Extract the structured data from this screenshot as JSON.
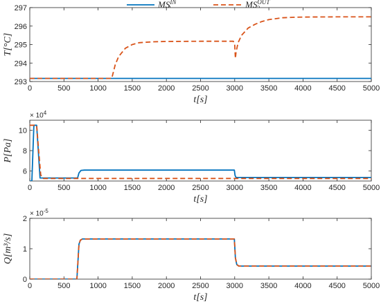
{
  "legend": {
    "entries": [
      {
        "base": "MS",
        "sub": "2",
        "sup": "IN",
        "color": "#0072BD",
        "dash": "solid"
      },
      {
        "base": "MS",
        "sub": "2",
        "sup": "OUT",
        "color": "#D95319",
        "dash": "dashed"
      }
    ]
  },
  "chart_data": [
    {
      "type": "line",
      "xlabel": "t[s]",
      "ylabel": "T[°C]",
      "xlim": [
        0,
        5000
      ],
      "ylim": [
        293,
        297
      ],
      "xticks": [
        0,
        500,
        1000,
        1500,
        2000,
        2500,
        3000,
        3500,
        4000,
        4500,
        5000
      ],
      "yticks": [
        293,
        294,
        295,
        296,
        297
      ],
      "exponent_label": "",
      "series": [
        {
          "name": "MS2 IN",
          "color": "#0072BD",
          "dash": "solid",
          "x": [
            0,
            5000
          ],
          "y": [
            293.17,
            293.17
          ]
        },
        {
          "name": "MS2 OUT",
          "color": "#D95319",
          "dash": "dashed",
          "x": [
            0,
            1200,
            1250,
            1300,
            1400,
            1500,
            1600,
            1800,
            2000,
            2500,
            2980,
            3000,
            3010,
            3020,
            3050,
            3100,
            3200,
            3300,
            3400,
            3500,
            3700,
            3900,
            4100,
            4500,
            5000
          ],
          "y": [
            293.17,
            293.17,
            293.9,
            294.35,
            294.8,
            295.0,
            295.1,
            295.15,
            295.17,
            295.18,
            295.18,
            295.0,
            294.25,
            294.6,
            295.1,
            295.5,
            295.9,
            296.1,
            296.25,
            296.35,
            296.45,
            296.48,
            296.49,
            296.5,
            296.5
          ]
        }
      ]
    },
    {
      "type": "line",
      "xlabel": "t[s]",
      "ylabel": "P[Pa]",
      "xlim": [
        0,
        5000
      ],
      "ylim": [
        50000,
        110000
      ],
      "xticks": [
        0,
        500,
        1000,
        1500,
        2000,
        2500,
        3000,
        3500,
        4000,
        4500,
        5000
      ],
      "yticks": [
        60000,
        80000,
        100000
      ],
      "yticklabels": [
        "6",
        "8",
        "10"
      ],
      "exponent_label": "× 10^4",
      "series": [
        {
          "name": "MS2 IN",
          "color": "#0072BD",
          "dash": "solid",
          "x": [
            0,
            30,
            60,
            100,
            150,
            700,
            720,
            750,
            800,
            2995,
            3005,
            3020,
            5000
          ],
          "y": [
            50000,
            50000,
            105000,
            105000,
            53000,
            53000,
            58000,
            60500,
            60800,
            60800,
            55500,
            53500,
            53500
          ]
        },
        {
          "name": "MS2 OUT",
          "color": "#D95319",
          "dash": "dashed",
          "x": [
            0,
            100,
            130,
            160,
            200,
            5000
          ],
          "y": [
            105000,
            105000,
            80000,
            56000,
            52500,
            52500
          ]
        }
      ]
    },
    {
      "type": "line",
      "xlabel": "t[s]",
      "ylabel": "Q[m³/s]",
      "xlim": [
        0,
        5000
      ],
      "ylim": [
        0,
        2e-05
      ],
      "xticks": [
        0,
        500,
        1000,
        1500,
        2000,
        2500,
        3000,
        3500,
        4000,
        4500,
        5000
      ],
      "yticks": [
        0,
        1e-05,
        2e-05
      ],
      "yticklabels": [
        "0",
        "1",
        "2"
      ],
      "exponent_label": "× 10^-5",
      "series": [
        {
          "name": "MS2 IN",
          "color": "#0072BD",
          "dash": "solid",
          "x": [
            0,
            690,
            720,
            740,
            770,
            2995,
            3010,
            3030,
            3060,
            5000
          ],
          "y": [
            0,
            0,
            1.15e-05,
            1.28e-05,
            1.32e-05,
            1.32e-05,
            7e-06,
            4.8e-06,
            4.3e-06,
            4.3e-06
          ]
        },
        {
          "name": "MS2 OUT",
          "color": "#D95319",
          "dash": "dashed",
          "x": [
            0,
            690,
            720,
            740,
            770,
            2995,
            3010,
            3030,
            3060,
            5000
          ],
          "y": [
            0,
            0,
            1.15e-05,
            1.28e-05,
            1.32e-05,
            1.32e-05,
            7e-06,
            4.8e-06,
            4.3e-06,
            4.3e-06
          ]
        }
      ]
    }
  ]
}
